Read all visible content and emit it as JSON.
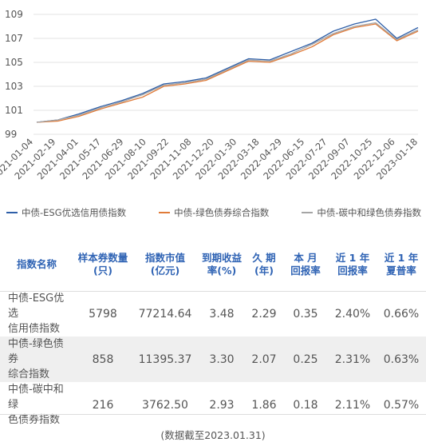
{
  "chart_data": {
    "type": "line",
    "ylim": [
      99,
      109
    ],
    "yticks": [
      99,
      101,
      103,
      105,
      107,
      109
    ],
    "xticks": [
      "2021-01-04",
      "2021-02-19",
      "2021-04-01",
      "2021-05-17",
      "2021-06-29",
      "2021-08-10",
      "2021-09-22",
      "2021-11-08",
      "2021-12-20",
      "2022-01-30",
      "2022-03-18",
      "2022-04-29",
      "2022-06-15",
      "2022-07-27",
      "2022-09-07",
      "2022-10-25",
      "2022-12-06",
      "2023-01-18"
    ],
    "series": [
      {
        "name": "中债-ESG优选信用债指数",
        "color": "#2e5fa8",
        "values": [
          100.0,
          100.2,
          100.7,
          101.3,
          101.8,
          102.4,
          103.2,
          103.4,
          103.7,
          104.5,
          105.3,
          105.2,
          105.9,
          106.6,
          107.6,
          108.2,
          108.6,
          107.0,
          107.9
        ]
      },
      {
        "name": "中债-绿色债券综合指数",
        "color": "#e07b39",
        "values": [
          100.0,
          100.1,
          100.5,
          101.1,
          101.6,
          102.1,
          103.0,
          103.2,
          103.5,
          104.3,
          105.1,
          105.0,
          105.6,
          106.3,
          107.3,
          107.9,
          108.2,
          106.8,
          107.6
        ]
      },
      {
        "name": "中债-碳中和绿色债券指数",
        "color": "#a5a5a5",
        "values": [
          100.0,
          100.2,
          100.6,
          101.2,
          101.7,
          102.3,
          103.1,
          103.3,
          103.6,
          104.4,
          105.2,
          105.1,
          105.7,
          106.5,
          107.4,
          108.0,
          108.3,
          106.9,
          107.7
        ]
      }
    ]
  },
  "table": {
    "headers": [
      {
        "l1": "指数名称",
        "l2": ""
      },
      {
        "l1": "样本券数量",
        "l2": "(只)"
      },
      {
        "l1": "指数市值",
        "l2": "(亿元)"
      },
      {
        "l1": "到期收益",
        "l2": "率(%)"
      },
      {
        "l1": "久 期",
        "l2": "(年)"
      },
      {
        "l1": "本 月",
        "l2": "回报率"
      },
      {
        "l1": "近 1 年",
        "l2": "回报率"
      },
      {
        "l1": "近 1 年",
        "l2": "夏普率"
      }
    ],
    "rows": [
      {
        "name1": "中债-ESG优选",
        "name2": "信用债指数",
        "count": "5798",
        "mv": "77214.64",
        "ytm": "3.48",
        "dur": "2.29",
        "m": "0.35",
        "y": "2.40%",
        "sharpe": "0.66%"
      },
      {
        "name1": "中债-绿色债券",
        "name2": "综合指数",
        "count": "858",
        "mv": "11395.37",
        "ytm": "3.30",
        "dur": "2.07",
        "m": "0.25",
        "y": "2.31%",
        "sharpe": "0.63%"
      },
      {
        "name1": "中债-碳中和绿",
        "name2": "色债券指数",
        "count": "216",
        "mv": "3762.50",
        "ytm": "2.93",
        "dur": "1.86",
        "m": "0.18",
        "y": "2.11%",
        "sharpe": "0.57%"
      }
    ]
  },
  "note": "(数据截至2023.01.31)"
}
